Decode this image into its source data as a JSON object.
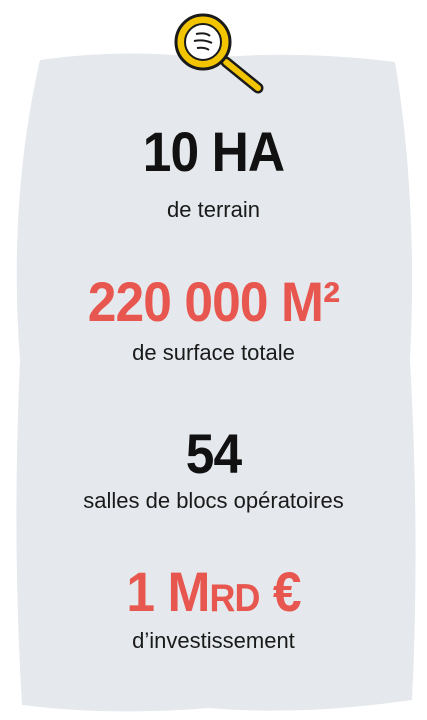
{
  "stats": [
    {
      "value": "10 HA",
      "label": "de terrain",
      "color": "#111111"
    },
    {
      "value": "220 000 M²",
      "label": "de surface totale",
      "color": "#e8574f"
    },
    {
      "value": "54",
      "label": "salles de blocs opératoires",
      "color": "#111111"
    },
    {
      "value": "1 Mrd €",
      "label": "d’investissement",
      "color": "#e8574f",
      "small_caps": true
    }
  ]
}
